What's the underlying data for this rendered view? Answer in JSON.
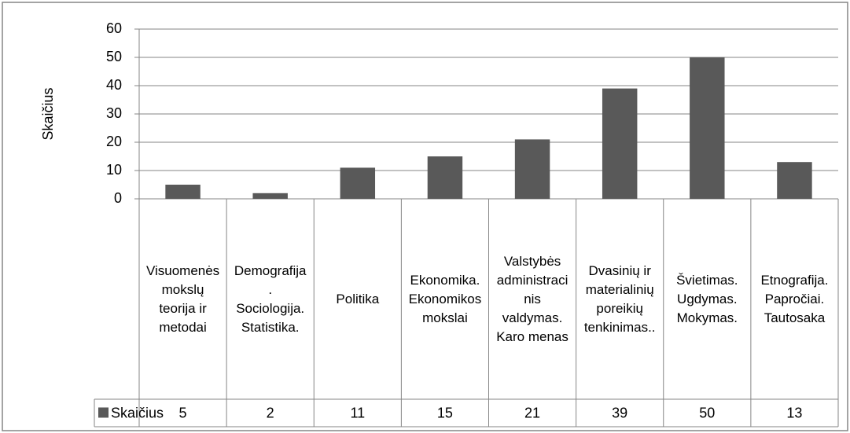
{
  "chart_data": {
    "type": "bar",
    "y_label": "Skaičius",
    "categories": [
      "Visuomenės mokslų teorija ir metodai",
      "Demografija. Sociologija. Statistika.",
      "Politika",
      "Ekonomika. Ekonomikos mokslai",
      "Valstybės administracinis valdymas. Karo menas",
      "Dvasinių ir materialinių poreikių tenkinimas..",
      "Švietimas. Ugdymas. Mokymas.",
      "Etnografija. Papročiai. Tautosaka"
    ],
    "series": [
      {
        "name": "Skaičius",
        "color": "#595959",
        "values": [
          5,
          2,
          11,
          15,
          21,
          39,
          50,
          13
        ]
      }
    ],
    "ylim": [
      0,
      60
    ],
    "yticks": [
      0,
      10,
      20,
      30,
      40,
      50,
      60
    ],
    "grid": true
  }
}
